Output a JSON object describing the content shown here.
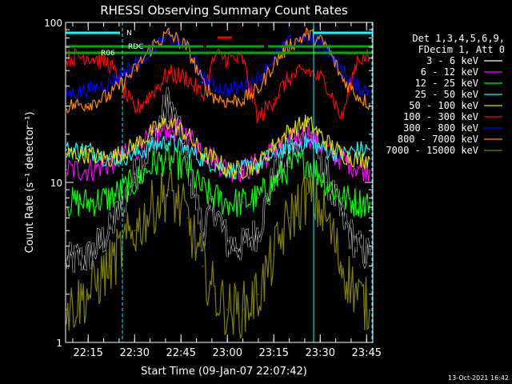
{
  "chart_data": {
    "type": "line",
    "title": "RHESSI Observing Summary Count Rates",
    "xlabel": "Start Time (09-Jan-07 22:07:42)",
    "ylabel": "Count Rate (s⁻¹ detector⁻¹)",
    "y_scale": "log",
    "ylim": [
      1,
      100
    ],
    "xlim": [
      "22:07:42",
      "23:47:00"
    ],
    "x_tick_labels": [
      "22:15",
      "22:30",
      "22:45",
      "23:00",
      "23:15",
      "23:30",
      "23:45"
    ],
    "y_tick_labels": [
      "1",
      "10",
      "100"
    ],
    "legend_header": [
      "Det 1,3,4,5,6,9,",
      "FDecim 1, Att 0"
    ],
    "legend_position": "right",
    "footer_date": "13-Oct-2021 16:42",
    "flag_labels": [
      "N",
      "RDC",
      "R06"
    ],
    "series": [
      {
        "name": "3 - 6 keV",
        "color": "#000000",
        "x": [
          "22:08",
          "22:15",
          "22:22",
          "22:30",
          "22:36",
          "22:41",
          "22:47",
          "22:52",
          "22:56",
          "23:00",
          "23:05",
          "23:10",
          "23:15",
          "23:20",
          "23:26",
          "23:32",
          "23:37",
          "23:42",
          "23:46"
        ],
        "values": [
          3.2,
          3.4,
          5,
          11,
          18,
          33,
          14,
          5,
          7,
          4.2,
          4,
          5,
          11,
          15,
          23,
          11,
          6,
          4,
          3.5
        ]
      },
      {
        "name": "6 - 12 keV",
        "color": "#ff00ff",
        "x": [
          "22:08",
          "22:15",
          "22:22",
          "22:30",
          "22:36",
          "22:41",
          "22:47",
          "22:52",
          "22:56",
          "23:00",
          "23:05",
          "23:10",
          "23:15",
          "23:20",
          "23:26",
          "23:32",
          "23:37",
          "23:42",
          "23:46"
        ],
        "values": [
          12,
          12,
          13,
          16,
          19,
          22,
          20,
          16,
          14,
          12,
          12,
          13,
          16,
          18,
          20,
          16,
          14,
          12.5,
          12
        ]
      },
      {
        "name": "12 - 25 keV",
        "color": "#00ff00",
        "x": [
          "22:08",
          "22:15",
          "22:22",
          "22:30",
          "22:36",
          "22:41",
          "22:47",
          "22:52",
          "22:56",
          "23:00",
          "23:05",
          "23:10",
          "23:15",
          "23:20",
          "23:26",
          "23:32",
          "23:37",
          "23:42",
          "23:46"
        ],
        "values": [
          7.5,
          7.5,
          8,
          10,
          13,
          14,
          12,
          9,
          8,
          7.5,
          7.5,
          8,
          10,
          12.5,
          13.5,
          10,
          8,
          7.5,
          7.5
        ]
      },
      {
        "name": "25 - 50 keV",
        "color": "#00ffff",
        "x": [
          "22:08",
          "22:15",
          "22:22",
          "22:30",
          "22:36",
          "22:41",
          "22:47",
          "22:52",
          "22:56",
          "23:00",
          "23:05",
          "23:10",
          "23:15",
          "23:20",
          "23:26",
          "23:32",
          "23:37",
          "23:42",
          "23:46"
        ],
        "values": [
          16,
          16,
          14,
          15,
          17,
          18,
          16,
          14,
          13,
          12,
          12,
          13,
          15,
          17,
          18,
          16,
          15,
          16,
          16
        ]
      },
      {
        "name": "50 - 100 keV",
        "color": "#dddd00",
        "x": [
          "22:08",
          "22:15",
          "22:22",
          "22:30",
          "22:36",
          "22:41",
          "22:47",
          "22:52",
          "22:56",
          "23:00",
          "23:05",
          "23:10",
          "23:15",
          "23:20",
          "23:26",
          "23:32",
          "23:37",
          "23:42",
          "23:46"
        ],
        "values": [
          15,
          15,
          14,
          17,
          21,
          24,
          20,
          15,
          14,
          12,
          12,
          13,
          17,
          21,
          24,
          18,
          15,
          14,
          14
        ]
      },
      {
        "name": "100 - 300 keV",
        "color": "#ff0000",
        "x": [
          "22:08",
          "22:15",
          "22:22",
          "22:30",
          "22:36",
          "22:41",
          "22:47",
          "22:52",
          "22:56",
          "23:00",
          "23:05",
          "23:10",
          "23:15",
          "23:20",
          "23:26",
          "23:32",
          "23:37",
          "23:42",
          "23:46"
        ],
        "values": [
          60,
          62,
          55,
          28,
          37,
          48,
          45,
          35,
          62,
          60,
          58,
          25,
          33,
          45,
          50,
          42,
          25,
          60,
          60
        ]
      },
      {
        "name": "300 - 800 keV",
        "color": "#0000ff",
        "x": [
          "22:08",
          "22:15",
          "22:22",
          "22:30",
          "22:36",
          "22:41",
          "22:47",
          "22:52",
          "22:56",
          "23:00",
          "23:05",
          "23:10",
          "23:15",
          "23:20",
          "23:26",
          "23:32",
          "23:37",
          "23:42",
          "23:46"
        ],
        "values": [
          36,
          38,
          42,
          55,
          70,
          80,
          70,
          45,
          40,
          38,
          40,
          45,
          60,
          75,
          80,
          70,
          50,
          40,
          37
        ]
      },
      {
        "name": "800 - 7000 keV",
        "color": "#ff8800",
        "x": [
          "22:08",
          "22:15",
          "22:22",
          "22:30",
          "22:36",
          "22:41",
          "22:47",
          "22:52",
          "22:56",
          "23:00",
          "23:05",
          "23:10",
          "23:15",
          "23:20",
          "23:26",
          "23:32",
          "23:37",
          "23:42",
          "23:46"
        ],
        "values": [
          30,
          31,
          35,
          50,
          72,
          85,
          70,
          42,
          34,
          32,
          33,
          38,
          55,
          72,
          85,
          72,
          45,
          35,
          31
        ]
      },
      {
        "name": "7000 - 15000 keV",
        "color": "#808000",
        "x": [
          "22:08",
          "22:15",
          "22:22",
          "22:30",
          "22:36",
          "22:41",
          "22:47",
          "22:52",
          "22:56",
          "23:00",
          "23:05",
          "23:10",
          "23:15",
          "23:20",
          "23:26",
          "23:32",
          "23:37",
          "23:42",
          "23:46"
        ],
        "values": [
          1.6,
          2,
          3,
          5,
          7,
          9,
          6,
          3,
          2,
          1.6,
          1.6,
          2,
          3.5,
          6,
          8.5,
          6,
          3,
          2,
          1.6
        ]
      }
    ]
  }
}
